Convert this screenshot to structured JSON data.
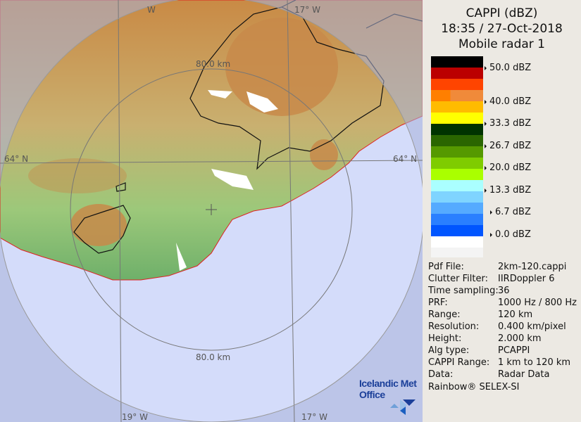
{
  "header": {
    "product": "CAPPI (dBZ)",
    "datetime": "18:35 / 27-Oct-2018",
    "radar": "Mobile radar 1"
  },
  "legend": {
    "colors": [
      "#000000",
      "#bb0000",
      "#ff4400",
      "#ff7f00",
      "#ffbb00",
      "#ffff00",
      "#003300",
      "#2a6600",
      "#559900",
      "#7fcc00",
      "#aaff00",
      "#aaffff",
      "#7fd4ff",
      "#55aaff",
      "#2a7fff",
      "#0055ff",
      "#ffffff",
      "#f4f4f4"
    ],
    "ticks": [
      "50.0 dBZ",
      "40.0 dBZ",
      "33.3 dBZ",
      "26.7 dBZ",
      "20.0 dBZ",
      "13.3 dBZ",
      "6.7 dBZ",
      "0.0 dBZ"
    ]
  },
  "info": [
    {
      "key": "Pdf File:",
      "value": "2km-120.cappi"
    },
    {
      "key": "Clutter Filter:",
      "value": "IIRDoppler 6"
    },
    {
      "key": "Time sampling:",
      "value": "36"
    },
    {
      "key": "PRF:",
      "value": "1000 Hz / 800 Hz"
    },
    {
      "key": "Range:",
      "value": "120 km"
    },
    {
      "key": "Resolution:",
      "value": "0.400 km/pixel"
    },
    {
      "key": "Height:",
      "value": "2.000 km"
    },
    {
      "key": "Alg type:",
      "value": "PCAPPI"
    },
    {
      "key": "CAPPI Range:",
      "value": "1 km to 120 km"
    },
    {
      "key": "Data:",
      "value": "Radar Data"
    }
  ],
  "footer": "Rainbow® SELEX-SI",
  "map": {
    "range_ring_top": "80.0 km",
    "range_ring_bottom": "80.0 km",
    "lat_left": "64° N",
    "lat_right": "64° N",
    "lon_top_left": "W",
    "lon_top_right": "17° W",
    "lon_bottom_left": "19° W",
    "lon_bottom_right": "17° W",
    "sea_color": "#d4dcfa",
    "outside_color": "#aab3da"
  },
  "logo": {
    "line1": "Icelandic Met",
    "line2": "Office"
  }
}
